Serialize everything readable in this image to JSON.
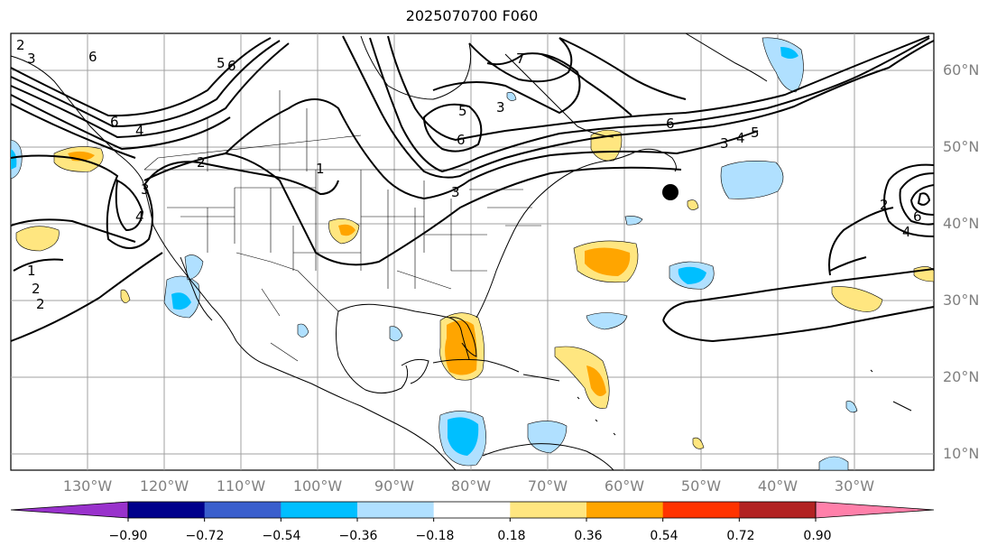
{
  "title": "2025070700 F060",
  "lat_labels": [
    "60°N",
    "50°N",
    "40°N",
    "30°N",
    "20°N",
    "10°N"
  ],
  "lon_labels": [
    "130°W",
    "120°W",
    "110°W",
    "100°W",
    "90°W",
    "80°W",
    "70°W",
    "60°W",
    "50°W",
    "40°W",
    "30°W"
  ],
  "contour_labels": [
    "2",
    "3",
    "6",
    "6",
    "4",
    "5",
    "6",
    "5",
    "6",
    "3",
    "7",
    "6",
    "5",
    "4",
    "3",
    "2",
    "1",
    "3",
    "4",
    "1",
    "2",
    "2",
    "3",
    "4",
    "2",
    "6"
  ],
  "colorbar": {
    "ticks": [
      "−0.90",
      "−0.72",
      "−0.54",
      "−0.36",
      "−0.18",
      "0.18",
      "0.36",
      "0.54",
      "0.72",
      "0.90"
    ],
    "colors": [
      "#9932cc",
      "#00008b",
      "#3a5fcd",
      "#00bfff",
      "#b0e0ff",
      "#ffffff",
      "#ffe680",
      "#ffa500",
      "#ff3300",
      "#b22222",
      "#ff80aa"
    ]
  },
  "colors": {
    "grid": "#a0a0a0",
    "coast": "#000000",
    "axis_label": "#808080"
  }
}
